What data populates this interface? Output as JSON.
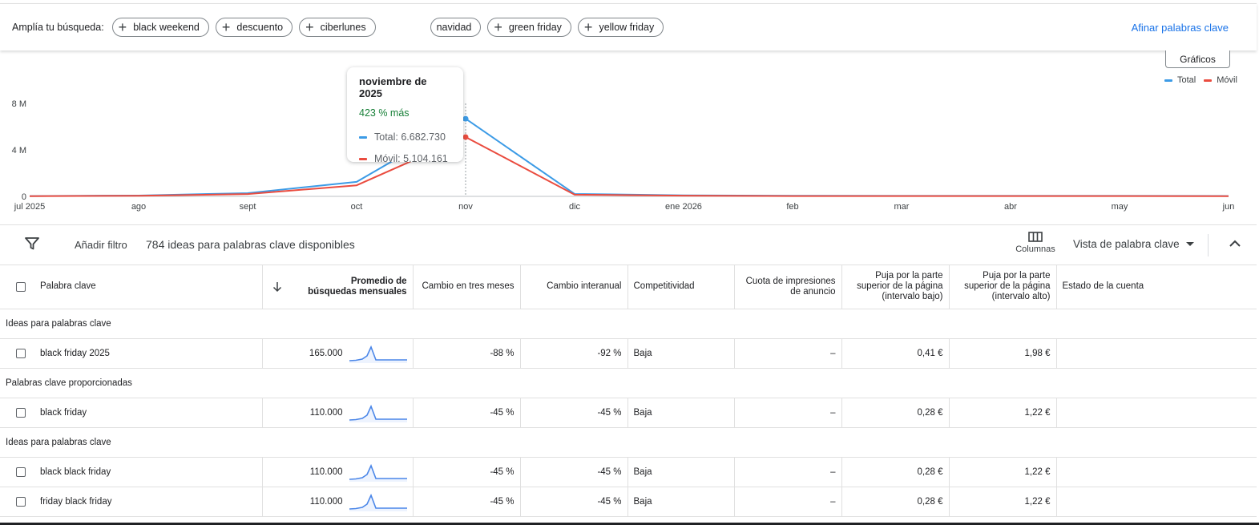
{
  "suggestions": {
    "label": "Amplía tu búsqueda:",
    "chips": [
      "black weekend",
      "descuento",
      "ciberlunes",
      "navidad",
      "green friday",
      "yellow friday"
    ],
    "refine_label": "Afinar palabras clave"
  },
  "chart": {
    "graphs_button": "Gráficos",
    "legend": {
      "total": "Total",
      "mobile": "Móvil"
    },
    "colors": {
      "total": "#3c9be6",
      "mobile": "#ea4c3f"
    }
  },
  "chart_data": {
    "type": "line",
    "categories": [
      "jul 2025",
      "ago",
      "sept",
      "oct",
      "nov",
      "dic",
      "ene 2026",
      "feb",
      "mar",
      "abr",
      "may",
      "jun"
    ],
    "yticks": [
      "0",
      "4 M",
      "8 M"
    ],
    "ylim": [
      0,
      8000000
    ],
    "series": [
      {
        "name": "Total",
        "values": [
          30000,
          70000,
          280000,
          1250000,
          6682730,
          210000,
          90000,
          50000,
          40000,
          40000,
          40000,
          30000
        ]
      },
      {
        "name": "Móvil",
        "values": [
          20000,
          50000,
          200000,
          950000,
          5104161,
          150000,
          60000,
          30000,
          25000,
          25000,
          25000,
          20000
        ]
      }
    ],
    "tooltip": {
      "title": "noviembre de 2025",
      "change": "423 % más",
      "total": "Total: 6.682.730",
      "mobile": "Móvil: 5.104.161"
    }
  },
  "toolbar": {
    "add_filter": "Añadir filtro",
    "ideas_count": "784 ideas para palabras clave disponibles",
    "columns": "Columnas",
    "view": "Vista de palabra clave"
  },
  "table": {
    "headers": {
      "keyword": "Palabra clave",
      "avg": "Promedio de búsquedas mensuales",
      "three_month": "Cambio en tres meses",
      "yoy": "Cambio interanual",
      "competition": "Competitividad",
      "impr_share": "Cuota de impresiones de anuncio",
      "bid_low": "Puja por la parte superior de la página (intervalo bajo)",
      "bid_high": "Puja por la parte superior de la página (intervalo alto)",
      "account_status": "Estado de la cuenta"
    },
    "sections": [
      {
        "title": "Ideas para palabras clave",
        "rows": [
          {
            "keyword": "black friday 2025",
            "avg": "165.000",
            "three_month": "-88 %",
            "yoy": "-92 %",
            "competition": "Baja",
            "impr_share": "–",
            "bid_low": "0,41 €",
            "bid_high": "1,98 €"
          }
        ]
      },
      {
        "title": "Palabras clave proporcionadas",
        "rows": [
          {
            "keyword": "black friday",
            "avg": "110.000",
            "three_month": "-45 %",
            "yoy": "-45 %",
            "competition": "Baja",
            "impr_share": "–",
            "bid_low": "0,28 €",
            "bid_high": "1,22 €"
          }
        ]
      },
      {
        "title": "Ideas para palabras clave",
        "rows": [
          {
            "keyword": "black black friday",
            "avg": "110.000",
            "three_month": "-45 %",
            "yoy": "-45 %",
            "competition": "Baja",
            "impr_share": "–",
            "bid_low": "0,28 €",
            "bid_high": "1,22 €"
          },
          {
            "keyword": "friday black friday",
            "avg": "110.000",
            "three_month": "-45 %",
            "yoy": "-45 %",
            "competition": "Baja",
            "impr_share": "–",
            "bid_low": "0,28 €",
            "bid_high": "1,22 €"
          }
        ]
      }
    ]
  }
}
